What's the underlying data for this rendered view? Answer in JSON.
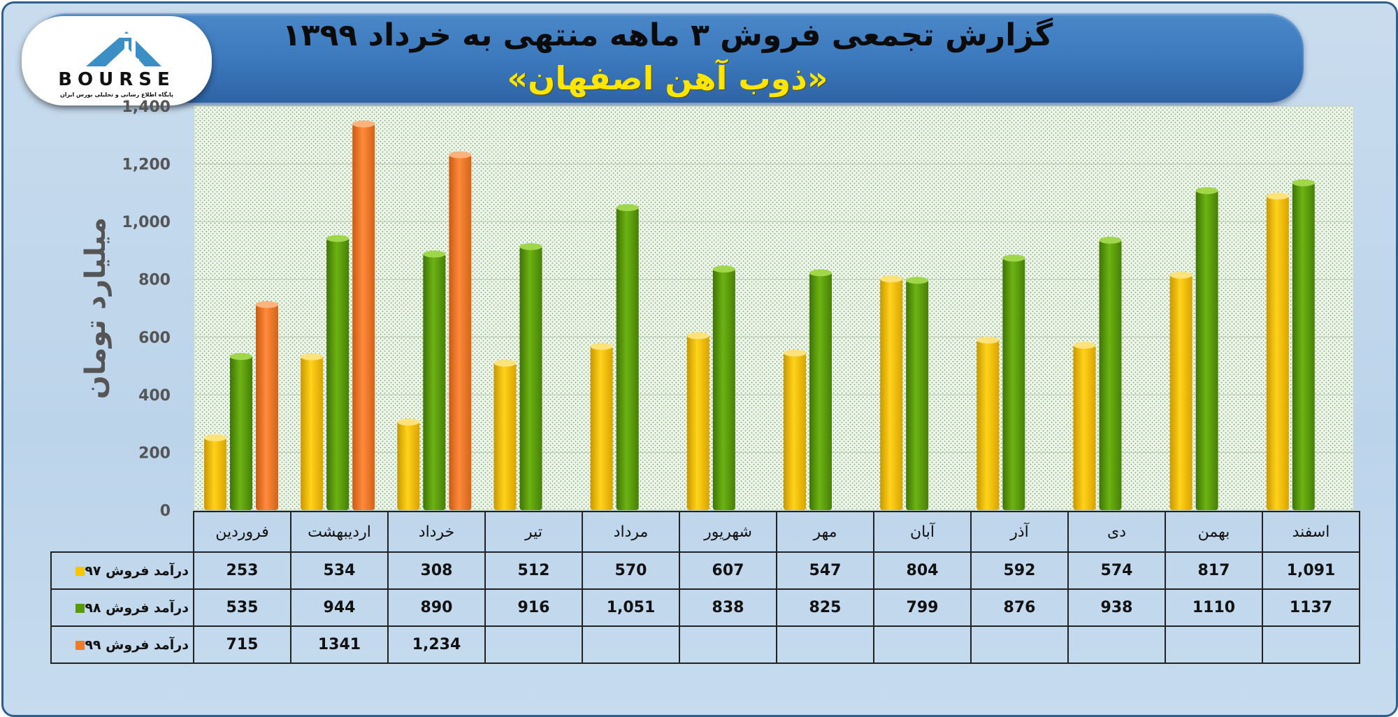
{
  "header": {
    "title": "گزارش تجمعی فروش ۳ ماهه منتهی به خرداد ۱۳۹۹",
    "subtitle": "«ذوب آهن اصفهان»"
  },
  "logo": {
    "text": "BOURSE",
    "subtext": "پایگاه اطلاع رسانی و تحلیلی بورس ایران"
  },
  "colors": {
    "series97": "#f7c600",
    "series98": "#5a9a0a",
    "series99": "#f07a26"
  },
  "chart_data": {
    "type": "bar",
    "title": "گزارش تجمعی فروش ۳ ماهه منتهی به خرداد ۱۳۹۹",
    "ylabel": "میلیارد تومان",
    "ylim": [
      0,
      1400
    ],
    "yticks": [
      "0",
      "200",
      "400",
      "600",
      "800",
      "1,000",
      "1,200",
      "1,400"
    ],
    "grid": true,
    "categories": [
      "فروردین",
      "اردیبهشت",
      "خرداد",
      "تیر",
      "مرداد",
      "شهریور",
      "مهر",
      "آبان",
      "آذر",
      "دی",
      "بهمن",
      "اسفند"
    ],
    "series": [
      {
        "name": "درآمد فروش ۹۷",
        "values": [
          253,
          534,
          308,
          512,
          570,
          607,
          547,
          804,
          592,
          574,
          817,
          1091
        ],
        "labels": [
          "253",
          "534",
          "308",
          "512",
          "570",
          "607",
          "547",
          "804",
          "592",
          "574",
          "817",
          "1,091"
        ]
      },
      {
        "name": "درآمد فروش ۹۸",
        "values": [
          535,
          944,
          890,
          916,
          1051,
          838,
          825,
          799,
          876,
          938,
          1110,
          1137
        ],
        "labels": [
          "535",
          "944",
          "890",
          "916",
          "1,051",
          "838",
          "825",
          "799",
          "876",
          "938",
          "1110",
          "1137"
        ]
      },
      {
        "name": "درآمد فروش ۹۹",
        "values": [
          715,
          1341,
          1234,
          null,
          null,
          null,
          null,
          null,
          null,
          null,
          null,
          null
        ],
        "labels": [
          "715",
          "1341",
          "1,234",
          "",
          "",
          "",
          "",
          "",
          "",
          "",
          "",
          ""
        ]
      }
    ]
  }
}
